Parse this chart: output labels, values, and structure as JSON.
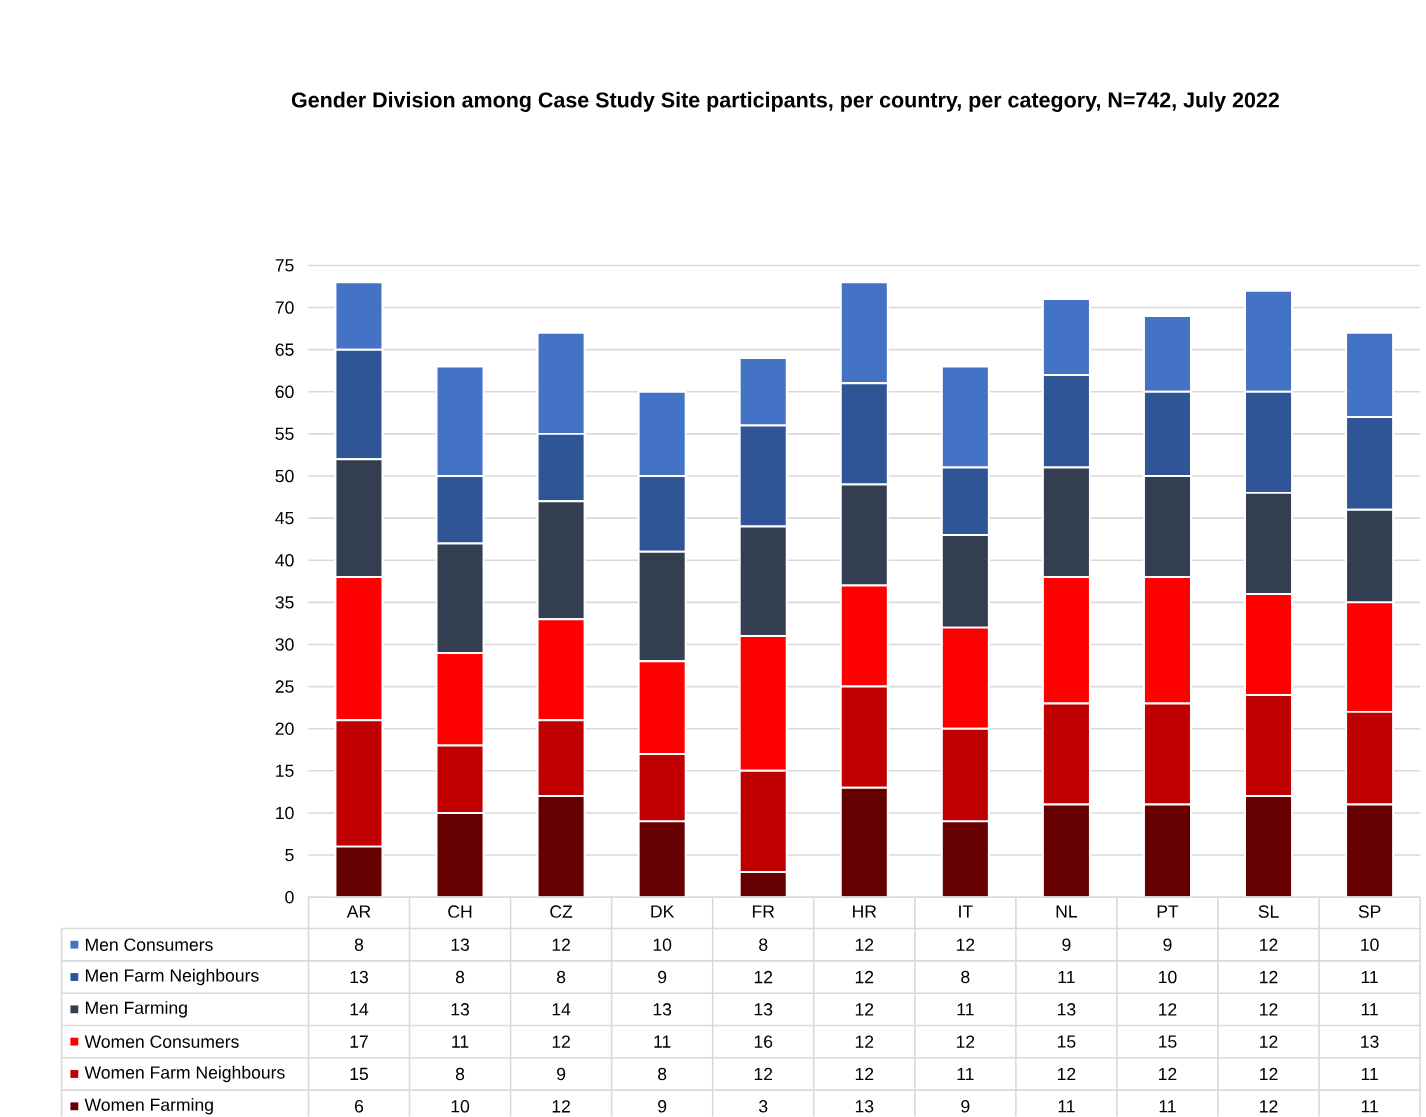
{
  "chart_data": {
    "type": "bar",
    "title": "Gender Division among Case Study Site participants, per country, per category, N=742, July 2022",
    "categories": [
      "AR",
      "CH",
      "CZ",
      "DK",
      "FR",
      "HR",
      "IT",
      "NL",
      "PT",
      "SL",
      "SP"
    ],
    "series": [
      {
        "name": "Women Farming",
        "color": "#660000",
        "values": [
          6,
          10,
          12,
          9,
          3,
          13,
          9,
          11,
          11,
          12,
          11
        ]
      },
      {
        "name": "Women Farm Neighbours",
        "color": "#c00000",
        "values": [
          15,
          8,
          9,
          8,
          12,
          12,
          11,
          12,
          12,
          12,
          11
        ]
      },
      {
        "name": "Women Consumers",
        "color": "#ff0000",
        "values": [
          17,
          11,
          12,
          11,
          16,
          12,
          12,
          15,
          15,
          12,
          13
        ]
      },
      {
        "name": "Men Farming",
        "color": "#333f50",
        "values": [
          14,
          13,
          14,
          13,
          13,
          12,
          11,
          13,
          12,
          12,
          11
        ]
      },
      {
        "name": "Men Farm Neighbours",
        "color": "#2f5597",
        "values": [
          13,
          8,
          8,
          9,
          12,
          12,
          8,
          11,
          10,
          12,
          11
        ]
      },
      {
        "name": "Men Consumers",
        "color": "#4472c4",
        "values": [
          8,
          13,
          12,
          10,
          8,
          12,
          12,
          9,
          9,
          12,
          10
        ]
      }
    ],
    "stacked": true,
    "ylim": [
      0,
      75
    ],
    "yticks": [
      0,
      5,
      10,
      15,
      20,
      25,
      30,
      35,
      40,
      45,
      50,
      55,
      60,
      65,
      70,
      75
    ],
    "grid": "y",
    "legend": "bottom",
    "data_labels": true
  }
}
